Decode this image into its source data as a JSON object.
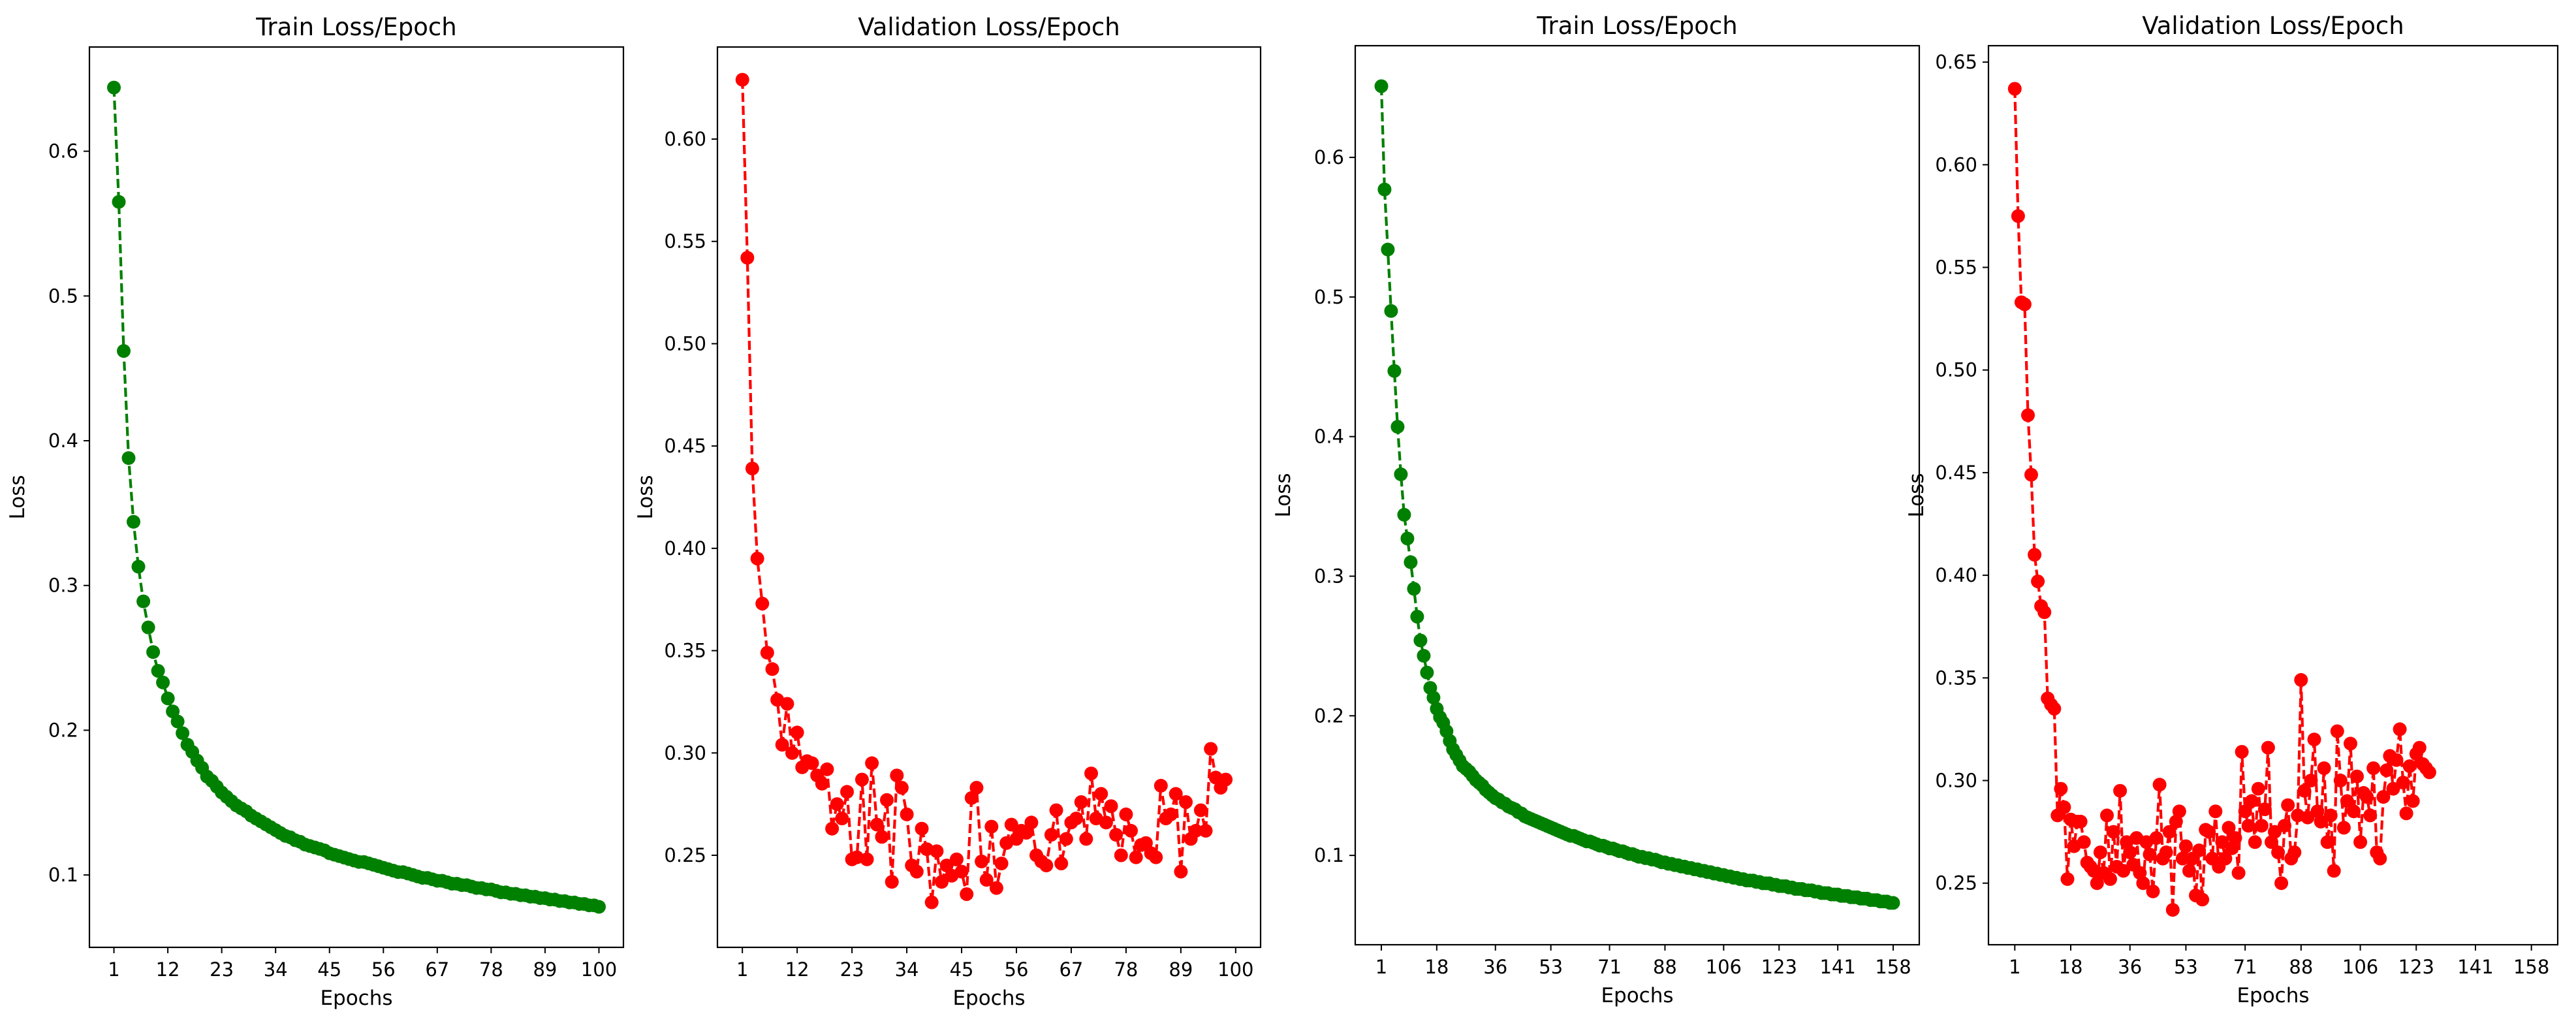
{
  "chart_data": [
    {
      "type": "line",
      "title": "Train Loss/Epoch",
      "xlabel": "Epochs",
      "ylabel": "Loss",
      "color": "#008000",
      "line_style": "dashed",
      "marker": "circle",
      "grid": false,
      "xlim": [
        -4,
        105
      ],
      "ylim": [
        0.05,
        0.672
      ],
      "xticks": [
        1,
        12,
        23,
        34,
        45,
        56,
        67,
        78,
        89,
        100
      ],
      "xtick_labels": [
        "1",
        "12",
        "23",
        "34",
        "45",
        "56",
        "67",
        "78",
        "89",
        "100"
      ],
      "yticks": [
        0.1,
        0.2,
        0.3,
        0.4,
        0.5,
        0.6
      ],
      "ytick_labels": [
        "0.1",
        "0.2",
        "0.3",
        "0.4",
        "0.5",
        "0.6"
      ],
      "x_start": 1,
      "values": [
        0.644,
        0.565,
        0.462,
        0.388,
        0.344,
        0.313,
        0.289,
        0.271,
        0.254,
        0.241,
        0.233,
        0.222,
        0.213,
        0.206,
        0.198,
        0.19,
        0.185,
        0.179,
        0.174,
        0.168,
        0.165,
        0.161,
        0.157,
        0.154,
        0.151,
        0.148,
        0.146,
        0.144,
        0.141,
        0.139,
        0.137,
        0.135,
        0.133,
        0.131,
        0.129,
        0.127,
        0.126,
        0.124,
        0.123,
        0.121,
        0.12,
        0.119,
        0.118,
        0.117,
        0.115,
        0.114,
        0.113,
        0.112,
        0.111,
        0.11,
        0.109,
        0.109,
        0.108,
        0.107,
        0.106,
        0.105,
        0.104,
        0.103,
        0.102,
        0.102,
        0.101,
        0.1,
        0.099,
        0.098,
        0.098,
        0.097,
        0.096,
        0.096,
        0.095,
        0.094,
        0.094,
        0.093,
        0.093,
        0.092,
        0.091,
        0.091,
        0.09,
        0.09,
        0.089,
        0.088,
        0.088,
        0.087,
        0.087,
        0.086,
        0.086,
        0.085,
        0.085,
        0.084,
        0.084,
        0.083,
        0.083,
        0.082,
        0.082,
        0.081,
        0.081,
        0.08,
        0.08,
        0.079,
        0.079,
        0.078
      ]
    },
    {
      "type": "line",
      "title": "Validation Loss/Epoch",
      "xlabel": "Epochs",
      "ylabel": "Loss",
      "color": "#ff0000",
      "line_style": "dashed",
      "marker": "circle",
      "grid": false,
      "xlim": [
        -4,
        105
      ],
      "ylim": [
        0.205,
        0.645
      ],
      "xticks": [
        1,
        12,
        23,
        34,
        45,
        56,
        67,
        78,
        89,
        100
      ],
      "xtick_labels": [
        "1",
        "12",
        "23",
        "34",
        "45",
        "56",
        "67",
        "78",
        "89",
        "100"
      ],
      "yticks": [
        0.25,
        0.3,
        0.35,
        0.4,
        0.45,
        0.5,
        0.55,
        0.6
      ],
      "ytick_labels": [
        "0.25",
        "0.30",
        "0.35",
        "0.40",
        "0.45",
        "0.50",
        "0.55",
        "0.60"
      ],
      "x_start": 1,
      "values": [
        0.629,
        0.542,
        0.439,
        0.395,
        0.373,
        0.349,
        0.341,
        0.326,
        0.304,
        0.324,
        0.3,
        0.31,
        0.293,
        0.296,
        0.295,
        0.289,
        0.285,
        0.292,
        0.263,
        0.275,
        0.268,
        0.281,
        0.248,
        0.249,
        0.287,
        0.248,
        0.295,
        0.265,
        0.259,
        0.277,
        0.237,
        0.289,
        0.283,
        0.27,
        0.245,
        0.242,
        0.263,
        0.253,
        0.227,
        0.252,
        0.237,
        0.245,
        0.24,
        0.248,
        0.242,
        0.231,
        0.278,
        0.283,
        0.247,
        0.238,
        0.264,
        0.234,
        0.246,
        0.256,
        0.265,
        0.258,
        0.262,
        0.261,
        0.266,
        0.25,
        0.247,
        0.245,
        0.26,
        0.272,
        0.246,
        0.258,
        0.266,
        0.268,
        0.276,
        0.258,
        0.29,
        0.268,
        0.28,
        0.266,
        0.274,
        0.26,
        0.25,
        0.27,
        0.262,
        0.249,
        0.255,
        0.256,
        0.251,
        0.249,
        0.284,
        0.268,
        0.27,
        0.28,
        0.242,
        0.276,
        0.258,
        0.262,
        0.272,
        0.262,
        0.302,
        0.288,
        0.283,
        0.287
      ]
    },
    {
      "type": "line",
      "title": "Train Loss/Epoch",
      "xlabel": "Epochs",
      "ylabel": "Loss",
      "color": "#008000",
      "line_style": "dashed",
      "marker": "circle",
      "grid": false,
      "xlim": [
        -7,
        166
      ],
      "ylim": [
        0.036,
        0.68
      ],
      "xticks": [
        1,
        18,
        36,
        53,
        71,
        88,
        106,
        123,
        141,
        158
      ],
      "xtick_labels": [
        "1",
        "18",
        "36",
        "53",
        "71",
        "88",
        "106",
        "123",
        "141",
        "158"
      ],
      "yticks": [
        0.1,
        0.2,
        0.3,
        0.4,
        0.5,
        0.6
      ],
      "ytick_labels": [
        "0.1",
        "0.2",
        "0.3",
        "0.4",
        "0.5",
        "0.6"
      ],
      "x_start": 1,
      "values": [
        0.651,
        0.577,
        0.534,
        0.49,
        0.447,
        0.407,
        0.373,
        0.344,
        0.327,
        0.31,
        0.291,
        0.271,
        0.254,
        0.243,
        0.231,
        0.22,
        0.213,
        0.205,
        0.199,
        0.195,
        0.189,
        0.182,
        0.176,
        0.172,
        0.168,
        0.164,
        0.162,
        0.16,
        0.157,
        0.154,
        0.152,
        0.15,
        0.147,
        0.145,
        0.143,
        0.141,
        0.14,
        0.138,
        0.137,
        0.135,
        0.134,
        0.133,
        0.131,
        0.13,
        0.128,
        0.127,
        0.126,
        0.125,
        0.124,
        0.123,
        0.122,
        0.121,
        0.12,
        0.119,
        0.118,
        0.117,
        0.116,
        0.115,
        0.114,
        0.114,
        0.113,
        0.112,
        0.111,
        0.11,
        0.11,
        0.109,
        0.108,
        0.107,
        0.107,
        0.106,
        0.105,
        0.105,
        0.104,
        0.103,
        0.103,
        0.102,
        0.101,
        0.101,
        0.1,
        0.099,
        0.099,
        0.098,
        0.098,
        0.097,
        0.097,
        0.096,
        0.095,
        0.095,
        0.094,
        0.094,
        0.093,
        0.093,
        0.092,
        0.092,
        0.091,
        0.091,
        0.09,
        0.09,
        0.089,
        0.089,
        0.088,
        0.088,
        0.087,
        0.087,
        0.086,
        0.086,
        0.085,
        0.085,
        0.084,
        0.084,
        0.083,
        0.083,
        0.082,
        0.082,
        0.082,
        0.081,
        0.081,
        0.08,
        0.08,
        0.08,
        0.079,
        0.079,
        0.078,
        0.078,
        0.078,
        0.077,
        0.077,
        0.076,
        0.076,
        0.076,
        0.075,
        0.075,
        0.075,
        0.074,
        0.074,
        0.073,
        0.073,
        0.073,
        0.072,
        0.072,
        0.072,
        0.071,
        0.071,
        0.071,
        0.07,
        0.07,
        0.07,
        0.069,
        0.069,
        0.069,
        0.068,
        0.068,
        0.068,
        0.067,
        0.067,
        0.067,
        0.066,
        0.066
      ]
    },
    {
      "type": "line",
      "title": "Validation Loss/Epoch",
      "xlabel": "Epochs",
      "ylabel": "Loss",
      "color": "#ff0000",
      "line_style": "dashed",
      "marker": "circle",
      "grid": false,
      "xlim": [
        -7,
        166
      ],
      "ylim": [
        0.22,
        0.658
      ],
      "xticks": [
        1,
        18,
        36,
        53,
        71,
        88,
        106,
        123,
        141,
        158
      ],
      "xtick_labels": [
        "1",
        "18",
        "36",
        "53",
        "71",
        "88",
        "106",
        "123",
        "141",
        "158"
      ],
      "yticks": [
        0.25,
        0.3,
        0.35,
        0.4,
        0.45,
        0.5,
        0.55,
        0.6,
        0.65
      ],
      "ytick_labels": [
        "0.25",
        "0.30",
        "0.35",
        "0.40",
        "0.45",
        "0.50",
        "0.55",
        "0.60",
        "0.65"
      ],
      "x_start": 1,
      "values": [
        0.637,
        0.575,
        0.533,
        0.532,
        0.478,
        0.449,
        0.41,
        0.397,
        0.385,
        0.382,
        0.34,
        0.337,
        0.335,
        0.283,
        0.296,
        0.287,
        0.252,
        0.281,
        0.268,
        0.28,
        0.28,
        0.27,
        0.26,
        0.258,
        0.256,
        0.25,
        0.265,
        0.255,
        0.283,
        0.252,
        0.275,
        0.258,
        0.295,
        0.256,
        0.27,
        0.265,
        0.259,
        0.272,
        0.255,
        0.25,
        0.27,
        0.264,
        0.246,
        0.272,
        0.298,
        0.262,
        0.265,
        0.275,
        0.237,
        0.28,
        0.285,
        0.262,
        0.268,
        0.256,
        0.262,
        0.244,
        0.266,
        0.242,
        0.276,
        0.275,
        0.262,
        0.285,
        0.258,
        0.27,
        0.262,
        0.277,
        0.267,
        0.272,
        0.255,
        0.314,
        0.285,
        0.278,
        0.29,
        0.27,
        0.296,
        0.278,
        0.286,
        0.316,
        0.27,
        0.275,
        0.265,
        0.25,
        0.278,
        0.288,
        0.262,
        0.265,
        0.283,
        0.349,
        0.295,
        0.282,
        0.3,
        0.32,
        0.285,
        0.28,
        0.306,
        0.27,
        0.283,
        0.256,
        0.324,
        0.3,
        0.277,
        0.29,
        0.318,
        0.285,
        0.302,
        0.27,
        0.294,
        0.292,
        0.283,
        0.306,
        0.265,
        0.262,
        0.292,
        0.305,
        0.312,
        0.296,
        0.31,
        0.325,
        0.299,
        0.284,
        0.307,
        0.29,
        0.313,
        0.316,
        0.308,
        0.306,
        0.304
      ]
    }
  ]
}
